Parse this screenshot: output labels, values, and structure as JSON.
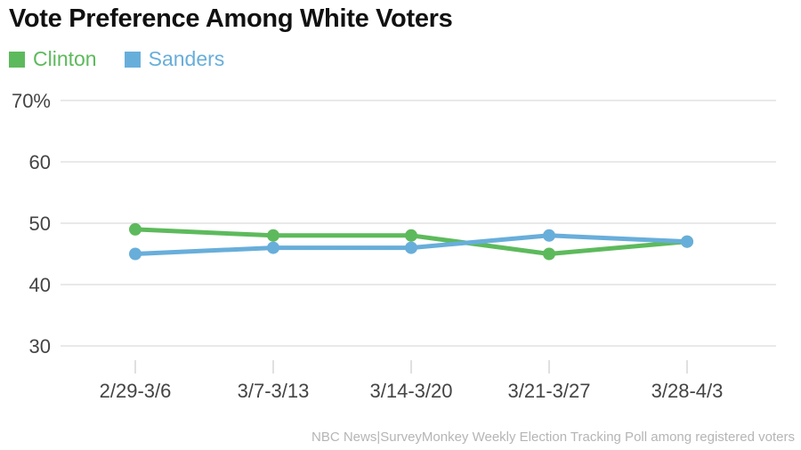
{
  "title": "Vote Preference Among White Voters",
  "footer": "NBC News|SurveyMonkey Weekly Election Tracking Poll among registered voters",
  "colors": {
    "clinton_green": "#5dba5c",
    "sanders_blue": "#68aeda",
    "gridline": "#e9e9e9",
    "tick": "#e0e0e0",
    "axis_text": "#444444",
    "title_text": "#111111",
    "footer_text": "#b5b5b5"
  },
  "chart_data": {
    "type": "line",
    "title": "Vote Preference Among White Voters",
    "categories": [
      "2/29-3/6",
      "3/7-3/13",
      "3/14-3/20",
      "3/21-3/27",
      "3/28-4/3"
    ],
    "series": [
      {
        "name": "Clinton",
        "color": "#5dba5c",
        "values": [
          49,
          48,
          48,
          45,
          47
        ]
      },
      {
        "name": "Sanders",
        "color": "#68aeda",
        "values": [
          45,
          46,
          46,
          48,
          47
        ]
      }
    ],
    "xlabel": "",
    "ylabel": "",
    "ylim": [
      30,
      70
    ],
    "yticks": [
      30,
      40,
      50,
      60,
      70
    ],
    "ytick_labels": [
      "30",
      "40",
      "50",
      "60",
      "70%"
    ],
    "grid": "horizontal",
    "legend_position": "top-left",
    "marker": "circle",
    "source_note": "NBC News|SurveyMonkey Weekly Election Tracking Poll among registered voters"
  }
}
